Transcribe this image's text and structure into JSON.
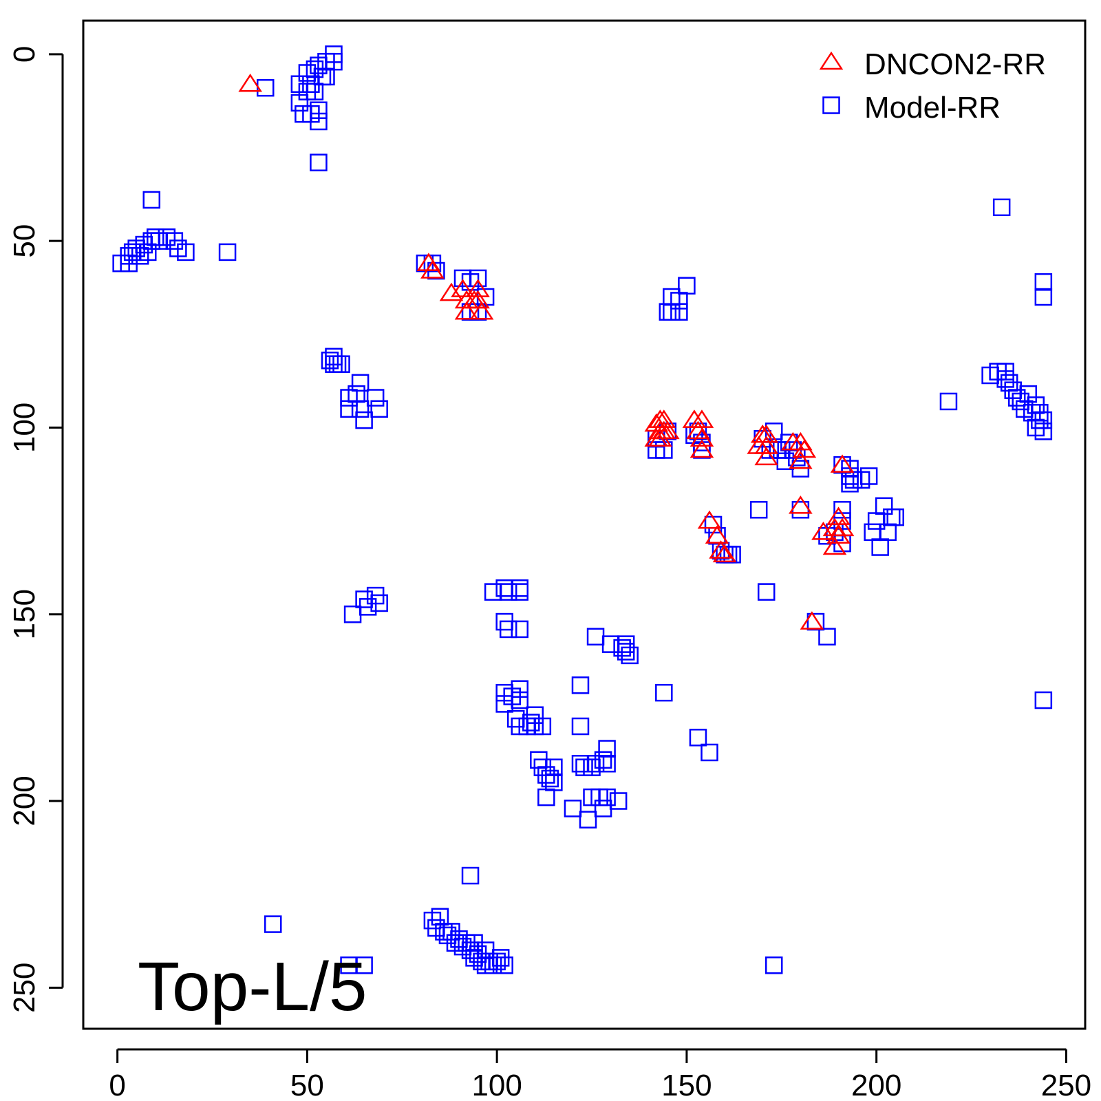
{
  "chart_data": {
    "type": "scatter",
    "title": "",
    "xlabel": "",
    "ylabel": "",
    "xlim": [
      -9,
      255
    ],
    "ylim": [
      -9,
      261
    ],
    "y_reversed": true,
    "grid": false,
    "legend": "top-right",
    "annotation": "Top-L/5",
    "x_ticks": [
      0,
      50,
      100,
      150,
      200,
      250
    ],
    "y_ticks": [
      0,
      50,
      100,
      150,
      200,
      250
    ],
    "series": [
      {
        "name": "DNCON2-RR",
        "marker": "triangle",
        "color": "#ff0000",
        "points": [
          [
            35,
            8
          ],
          [
            82,
            56
          ],
          [
            83,
            58
          ],
          [
            88,
            64
          ],
          [
            91,
            63
          ],
          [
            92,
            66
          ],
          [
            92,
            69
          ],
          [
            94,
            66
          ],
          [
            95,
            63
          ],
          [
            95,
            66
          ],
          [
            96,
            69
          ],
          [
            142,
            99
          ],
          [
            143,
            98
          ],
          [
            144,
            98
          ],
          [
            143,
            101
          ],
          [
            142,
            103
          ],
          [
            143,
            103
          ],
          [
            144,
            101
          ],
          [
            145,
            101
          ],
          [
            152,
            98
          ],
          [
            154,
            98
          ],
          [
            153,
            101
          ],
          [
            154,
            103
          ],
          [
            154,
            106
          ],
          [
            169,
            105
          ],
          [
            170,
            102
          ],
          [
            171,
            102
          ],
          [
            171,
            105
          ],
          [
            171,
            108
          ],
          [
            178,
            104
          ],
          [
            180,
            104
          ],
          [
            181,
            106
          ],
          [
            180,
            109
          ],
          [
            191,
            110
          ],
          [
            180,
            121
          ],
          [
            156,
            125
          ],
          [
            158,
            129
          ],
          [
            159,
            133
          ],
          [
            160,
            134
          ],
          [
            186,
            128
          ],
          [
            189,
            127
          ],
          [
            190,
            124
          ],
          [
            191,
            127
          ],
          [
            190,
            129
          ],
          [
            189,
            132
          ],
          [
            183,
            152
          ]
        ]
      },
      {
        "name": "Model-RR",
        "marker": "square",
        "color": "#0000ff",
        "points": [
          [
            39,
            9
          ],
          [
            48,
            8
          ],
          [
            48,
            13
          ],
          [
            49,
            16
          ],
          [
            50,
            10
          ],
          [
            50,
            5
          ],
          [
            51,
            16
          ],
          [
            51,
            8
          ],
          [
            52,
            4
          ],
          [
            52,
            10
          ],
          [
            53,
            15
          ],
          [
            53,
            18
          ],
          [
            53,
            3
          ],
          [
            54,
            6
          ],
          [
            55,
            2
          ],
          [
            55,
            6
          ],
          [
            57,
            0
          ],
          [
            57,
            2
          ],
          [
            53,
            29
          ],
          [
            9,
            39
          ],
          [
            1,
            56
          ],
          [
            3,
            56
          ],
          [
            3,
            54
          ],
          [
            4,
            53
          ],
          [
            5,
            52
          ],
          [
            6,
            54
          ],
          [
            7,
            51
          ],
          [
            8,
            53
          ],
          [
            9,
            50
          ],
          [
            10,
            49
          ],
          [
            11,
            50
          ],
          [
            13,
            49
          ],
          [
            15,
            50
          ],
          [
            16,
            52
          ],
          [
            18,
            53
          ],
          [
            29,
            53
          ],
          [
            81,
            56
          ],
          [
            83,
            56
          ],
          [
            84,
            58
          ],
          [
            93,
            61
          ],
          [
            91,
            60
          ],
          [
            95,
            60
          ],
          [
            97,
            65
          ],
          [
            93,
            69
          ],
          [
            95,
            69
          ],
          [
            150,
            62
          ],
          [
            146,
            65
          ],
          [
            148,
            66
          ],
          [
            145,
            69
          ],
          [
            146,
            69
          ],
          [
            148,
            69
          ],
          [
            56,
            82
          ],
          [
            57,
            81
          ],
          [
            57,
            83
          ],
          [
            58,
            83
          ],
          [
            59,
            83
          ],
          [
            64,
            88
          ],
          [
            63,
            91
          ],
          [
            68,
            92
          ],
          [
            61,
            92
          ],
          [
            61,
            95
          ],
          [
            64,
            95
          ],
          [
            65,
            98
          ],
          [
            69,
            95
          ],
          [
            219,
            93
          ],
          [
            233,
            41
          ],
          [
            230,
            86
          ],
          [
            232,
            85
          ],
          [
            234,
            87
          ],
          [
            234,
            85
          ],
          [
            235,
            88
          ],
          [
            236,
            90
          ],
          [
            237,
            92
          ],
          [
            238,
            93
          ],
          [
            239,
            95
          ],
          [
            240,
            91
          ],
          [
            241,
            96
          ],
          [
            242,
            94
          ],
          [
            242,
            100
          ],
          [
            243,
            96
          ],
          [
            243,
            98
          ],
          [
            244,
            101
          ],
          [
            244,
            98
          ],
          [
            244,
            61
          ],
          [
            244,
            65
          ],
          [
            142,
            103
          ],
          [
            142,
            106
          ],
          [
            144,
            106
          ],
          [
            145,
            101
          ],
          [
            152,
            102
          ],
          [
            153,
            101
          ],
          [
            154,
            104
          ],
          [
            154,
            106
          ],
          [
            170,
            103
          ],
          [
            172,
            106
          ],
          [
            173,
            101
          ],
          [
            174,
            106
          ],
          [
            175,
            106
          ],
          [
            177,
            104
          ],
          [
            178,
            106
          ],
          [
            176,
            109
          ],
          [
            179,
            108
          ],
          [
            180,
            111
          ],
          [
            191,
            110
          ],
          [
            193,
            111
          ],
          [
            193,
            113
          ],
          [
            193,
            115
          ],
          [
            194,
            114
          ],
          [
            196,
            114
          ],
          [
            198,
            113
          ],
          [
            169,
            122
          ],
          [
            180,
            122
          ],
          [
            157,
            126
          ],
          [
            158,
            129
          ],
          [
            159,
            133
          ],
          [
            160,
            134
          ],
          [
            161,
            134
          ],
          [
            162,
            134
          ],
          [
            187,
            129
          ],
          [
            191,
            122
          ],
          [
            191,
            125
          ],
          [
            189,
            128
          ],
          [
            191,
            131
          ],
          [
            199,
            128
          ],
          [
            200,
            125
          ],
          [
            201,
            132
          ],
          [
            202,
            121
          ],
          [
            203,
            128
          ],
          [
            204,
            124
          ],
          [
            205,
            124
          ],
          [
            171,
            144
          ],
          [
            184,
            152
          ],
          [
            187,
            156
          ],
          [
            62,
            150
          ],
          [
            65,
            146
          ],
          [
            66,
            148
          ],
          [
            68,
            145
          ],
          [
            69,
            147
          ],
          [
            99,
            144
          ],
          [
            102,
            143
          ],
          [
            103,
            144
          ],
          [
            106,
            143
          ],
          [
            106,
            144
          ],
          [
            102,
            152
          ],
          [
            103,
            154
          ],
          [
            106,
            154
          ],
          [
            126,
            156
          ],
          [
            130,
            158
          ],
          [
            133,
            159
          ],
          [
            134,
            158
          ],
          [
            134,
            160
          ],
          [
            135,
            161
          ],
          [
            144,
            171
          ],
          [
            102,
            171
          ],
          [
            102,
            174
          ],
          [
            104,
            172
          ],
          [
            106,
            170
          ],
          [
            106,
            173
          ],
          [
            105,
            178
          ],
          [
            106,
            180
          ],
          [
            108,
            180
          ],
          [
            109,
            179
          ],
          [
            110,
            177
          ],
          [
            110,
            180
          ],
          [
            112,
            180
          ],
          [
            122,
            169
          ],
          [
            122,
            180
          ],
          [
            153,
            183
          ],
          [
            156,
            187
          ],
          [
            111,
            189
          ],
          [
            112,
            191
          ],
          [
            113,
            193
          ],
          [
            114,
            194
          ],
          [
            115,
            191
          ],
          [
            115,
            195
          ],
          [
            113,
            199
          ],
          [
            122,
            190
          ],
          [
            123,
            191
          ],
          [
            125,
            191
          ],
          [
            126,
            190
          ],
          [
            128,
            189
          ],
          [
            129,
            186
          ],
          [
            129,
            190
          ],
          [
            120,
            202
          ],
          [
            124,
            205
          ],
          [
            125,
            199
          ],
          [
            127,
            199
          ],
          [
            128,
            202
          ],
          [
            129,
            199
          ],
          [
            132,
            200
          ],
          [
            93,
            220
          ],
          [
            41,
            233
          ],
          [
            83,
            232
          ],
          [
            84,
            234
          ],
          [
            85,
            231
          ],
          [
            86,
            235
          ],
          [
            87,
            236
          ],
          [
            88,
            235
          ],
          [
            89,
            238
          ],
          [
            90,
            237
          ],
          [
            91,
            239
          ],
          [
            92,
            238
          ],
          [
            93,
            240
          ],
          [
            94,
            242
          ],
          [
            94,
            238
          ],
          [
            95,
            241
          ],
          [
            96,
            243
          ],
          [
            97,
            240
          ],
          [
            97,
            244
          ],
          [
            98,
            243
          ],
          [
            99,
            244
          ],
          [
            100,
            243
          ],
          [
            101,
            242
          ],
          [
            102,
            244
          ],
          [
            61,
            244
          ],
          [
            65,
            244
          ],
          [
            173,
            244
          ],
          [
            244,
            173
          ]
        ]
      }
    ]
  }
}
